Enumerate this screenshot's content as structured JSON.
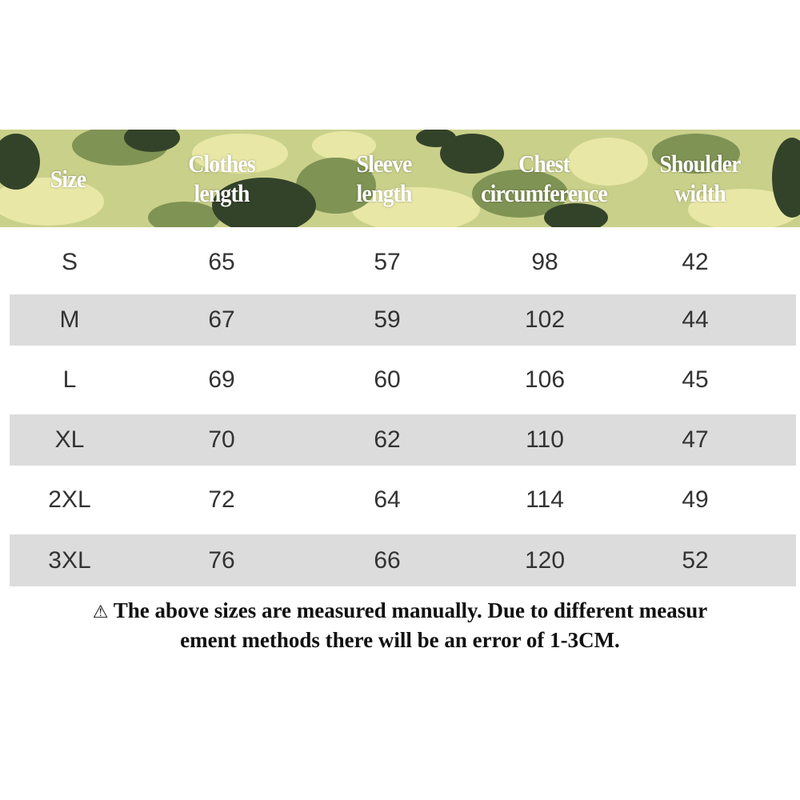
{
  "colors": {
    "header_camo": [
      "#c9d08a",
      "#e8e7a6",
      "#7f9354",
      "#33432a",
      "#a6b56c"
    ],
    "stripe": "#dcdcdc",
    "text": "#333333"
  },
  "table": {
    "headers": [
      [
        "Size"
      ],
      [
        "Clothes",
        "length"
      ],
      [
        "Sleeve",
        "length"
      ],
      [
        "Chest",
        "circumference"
      ],
      [
        "Shoulder",
        "width"
      ]
    ],
    "rows": [
      [
        "S",
        "65",
        "57",
        "98",
        "42"
      ],
      [
        "M",
        "67",
        "59",
        "102",
        "44"
      ],
      [
        "L",
        "69",
        "60",
        "106",
        "45"
      ],
      [
        "XL",
        "70",
        "62",
        "110",
        "47"
      ],
      [
        "2XL",
        "72",
        "64",
        "114",
        "49"
      ],
      [
        "3XL",
        "76",
        "66",
        "120",
        "52"
      ]
    ]
  },
  "note": {
    "icon": "warning-icon",
    "symbol": "⚠",
    "line1": "The above sizes are measured manually. Due to different measur",
    "line2": "ement methods there will be an error of 1-3CM."
  }
}
